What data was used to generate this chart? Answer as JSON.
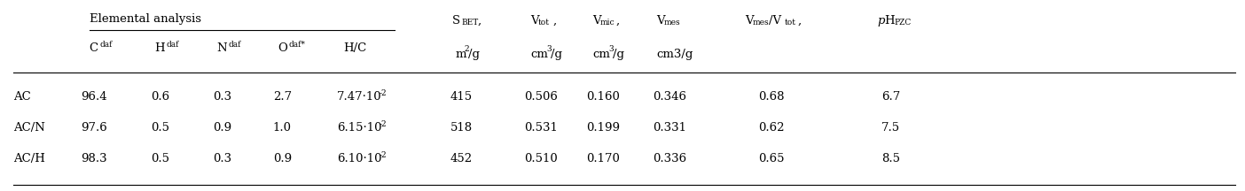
{
  "figsize": [
    14.04,
    2.16
  ],
  "dpi": 100,
  "bg_color": "#ffffff",
  "text_color": "#000000",
  "rows": [
    [
      "AC",
      "96.4",
      "0.6",
      "0.3",
      "2.7",
      "7.47",
      "-2",
      "415",
      "0.506",
      "0.160",
      "0.346",
      "0.68",
      "6.7"
    ],
    [
      "AC/N",
      "97.6",
      "0.5",
      "0.9",
      "1.0",
      "6.15",
      "-2",
      "518",
      "0.531",
      "0.199",
      "0.331",
      "0.62",
      "7.5"
    ],
    [
      "AC/H",
      "98.3",
      "0.5",
      "0.3",
      "0.9",
      "6.10",
      "-2",
      "452",
      "0.510",
      "0.170",
      "0.336",
      "0.65",
      "8.5"
    ]
  ],
  "font_size": 9.5,
  "sup_font_size": 6.5,
  "line_color": "#000000",
  "line_width": 0.8
}
